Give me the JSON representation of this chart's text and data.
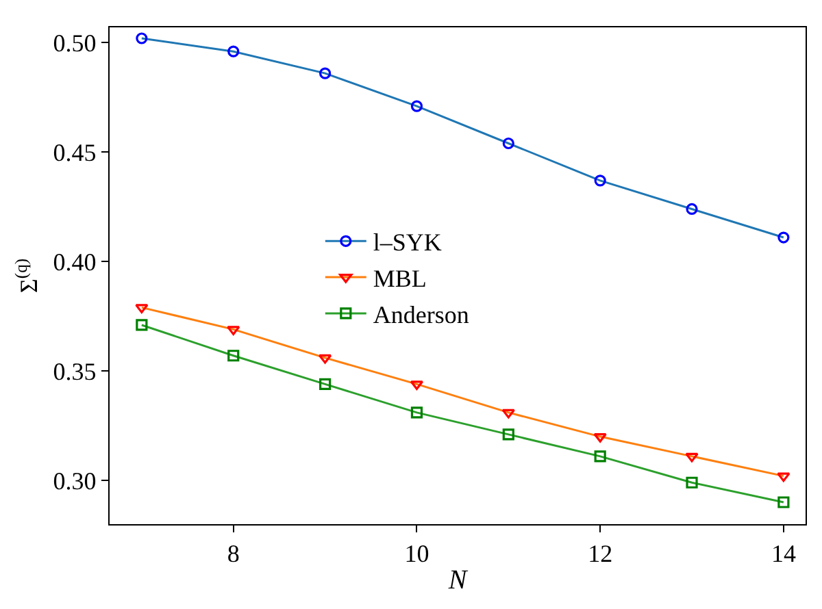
{
  "chart_data": {
    "type": "line",
    "xlabel": "N",
    "ylabel": "Σ$^{(q)}$",
    "x": [
      7,
      8,
      9,
      10,
      11,
      12,
      13,
      14
    ],
    "series": [
      {
        "name": "l–SYK",
        "color": "#1f77b4",
        "colors": [
          "#0000ff",
          "#0000ff",
          "#0000ff",
          "#0000ff",
          "#0000ff",
          "#0000ff",
          "#0000ff",
          "#0000ff"
        ],
        "marker": "circle",
        "values": [
          0.502,
          0.496,
          0.486,
          0.471,
          0.454,
          0.437,
          0.424,
          0.411
        ]
      },
      {
        "name": "MBL",
        "color": "#ff7f0e",
        "colors": [
          "#ff0000",
          "#ff0000",
          "#ff0000",
          "#ff0000",
          "#ff0000",
          "#ff0000",
          "#ff0000",
          "#ff0000"
        ],
        "marker": "triangle",
        "values": [
          0.379,
          0.369,
          0.356,
          0.344,
          0.331,
          0.32,
          0.311,
          0.302
        ]
      },
      {
        "name": "Anderson",
        "color": "#2ca02c",
        "colors": [
          "#008000",
          "#008000",
          "#008000",
          "#008000",
          "#008000",
          "#008000",
          "#008000",
          "#008000"
        ],
        "marker": "square",
        "values": [
          0.371,
          0.357,
          0.344,
          0.331,
          0.321,
          0.311,
          0.299,
          0.29
        ]
      }
    ],
    "xlim": [
      6.65,
      14.24
    ],
    "ylim": [
      0.28,
      0.507
    ],
    "xticks": [
      8,
      10,
      12,
      14
    ],
    "yticks": [
      {
        "value": 0.3,
        "label": "0.30"
      },
      {
        "value": 0.35,
        "label": "0.35"
      },
      {
        "value": 0.4,
        "label": "0.40"
      },
      {
        "value": 0.45,
        "label": "0.45"
      },
      {
        "value": 0.5,
        "label": "0.50"
      }
    ],
    "legend": "center",
    "line_style": "solid"
  }
}
